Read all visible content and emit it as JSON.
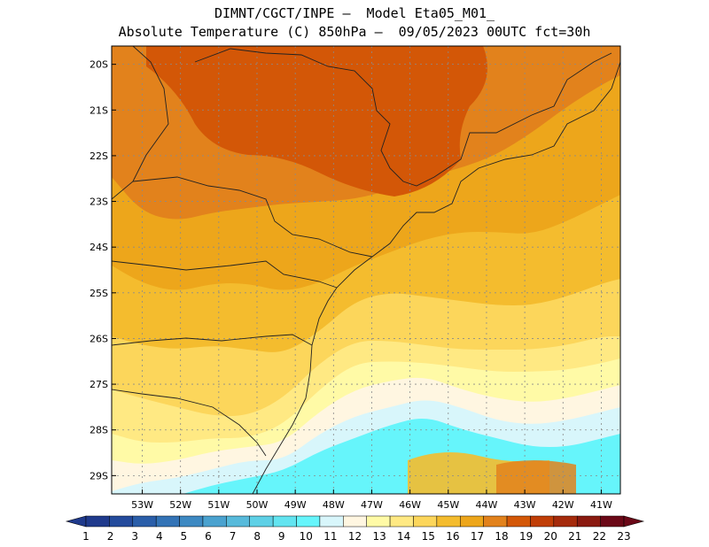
{
  "header": {
    "line1": "DIMNT/CGCT/INPE –  Model Eta05_M01_",
    "line2": "Absolute Temperature (C) 850hPa –  09/05/2023 00UTC fct=30h"
  },
  "axes": {
    "lat_labels": [
      "20S",
      "21S",
      "22S",
      "23S",
      "24S",
      "25S",
      "26S",
      "27S",
      "28S",
      "29S"
    ],
    "lon_labels": [
      "53W",
      "52W",
      "51W",
      "50W",
      "49W",
      "48W",
      "47W",
      "46W",
      "45W",
      "44W",
      "43W",
      "42W",
      "41W"
    ],
    "lon_range": [
      -53.8,
      -40.5
    ],
    "lat_range": [
      -19.6,
      -29.4
    ],
    "grid": true
  },
  "colorbar": {
    "labels": [
      "1",
      "2",
      "3",
      "4",
      "5",
      "6",
      "7",
      "8",
      "9",
      "10",
      "11",
      "12",
      "13",
      "14",
      "15",
      "16",
      "17",
      "18",
      "19",
      "20",
      "21",
      "22",
      "23"
    ],
    "colors": [
      "#1f3a8c",
      "#244b9c",
      "#2a5ea9",
      "#3373b6",
      "#3d89c2",
      "#4aa2cf",
      "#57badb",
      "#5ed0e6",
      "#62e4f0",
      "#66f5fb",
      "#d8f6fb",
      "#fff6e1",
      "#fffaa6",
      "#ffe983",
      "#fcd65b",
      "#f4bc2e",
      "#eda61b",
      "#e2821c",
      "#d35707",
      "#c03e07",
      "#a52b0c",
      "#8a1a10",
      "#6b0817"
    ]
  },
  "bands": {
    "colors": [
      "#e2821c",
      "#eda61b",
      "#f4bc2e",
      "#fcd65b",
      "#ffe983",
      "#fffaa6",
      "#fff6e1",
      "#d8f6fb",
      "#66f5fb"
    ]
  },
  "hot_core": {
    "color": "#d35707"
  },
  "map_style": {
    "coast_color": "#222222",
    "grid_color": "#8a8a8a"
  }
}
